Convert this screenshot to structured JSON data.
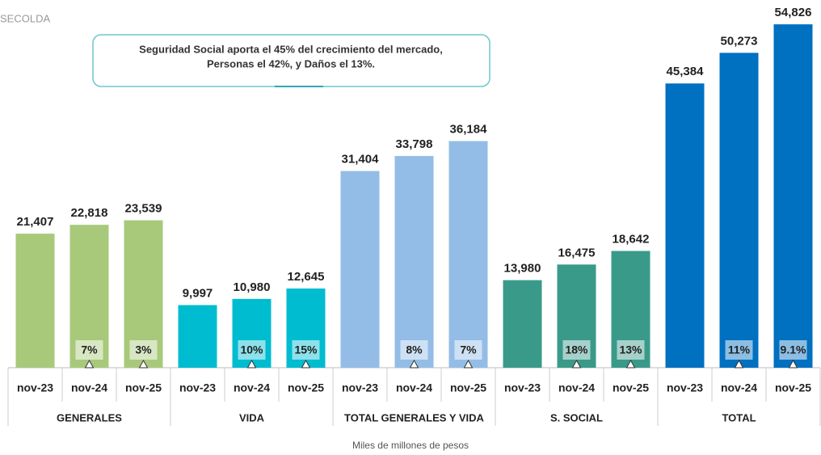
{
  "source": "SECOLDA",
  "annotation": [
    "Seguridad Social aporta el 45% del crecimiento del mercado,",
    "Personas el 42%,  y Daños el 13%."
  ],
  "footer": "Miles de millones de pesos",
  "chart_data": {
    "type": "bar",
    "groups": [
      {
        "name": "GENERALES",
        "color": "#a9c97a",
        "categories": [
          "nov-23",
          "nov-24",
          "nov-25"
        ],
        "values": [
          21407,
          22818,
          23539
        ],
        "value_labels": [
          "21,407",
          "22,818",
          "23,539"
        ],
        "growth_labels": [
          null,
          "7%",
          "3%"
        ]
      },
      {
        "name": "VIDA",
        "color": "#00bcd0",
        "categories": [
          "nov-23",
          "nov-24",
          "nov-25"
        ],
        "values": [
          9997,
          10980,
          12645
        ],
        "value_labels": [
          "9,997",
          "10,980",
          "12,645"
        ],
        "growth_labels": [
          null,
          "10%",
          "15%"
        ]
      },
      {
        "name": "TOTAL GENERALES Y VIDA",
        "color": "#93bde6",
        "categories": [
          "nov-23",
          "nov-24",
          "nov-25"
        ],
        "values": [
          31404,
          33798,
          36184
        ],
        "value_labels": [
          "31,404",
          "33,798",
          "36,184"
        ],
        "growth_labels": [
          null,
          "8%",
          "7%"
        ]
      },
      {
        "name": "S. SOCIAL",
        "color": "#3a9a8a",
        "categories": [
          "nov-23",
          "nov-24",
          "nov-25"
        ],
        "values": [
          13980,
          16475,
          18642
        ],
        "value_labels": [
          "13,980",
          "16,475",
          "18,642"
        ],
        "growth_labels": [
          null,
          "18%",
          "13%"
        ]
      },
      {
        "name": "TOTAL",
        "color": "#0070c0",
        "categories": [
          "nov-23",
          "nov-24",
          "nov-25"
        ],
        "values": [
          45384,
          50273,
          54826
        ],
        "value_labels": [
          "45,384",
          "50,273",
          "54,826"
        ],
        "growth_labels": [
          null,
          "11%",
          "9.1%"
        ]
      }
    ]
  }
}
